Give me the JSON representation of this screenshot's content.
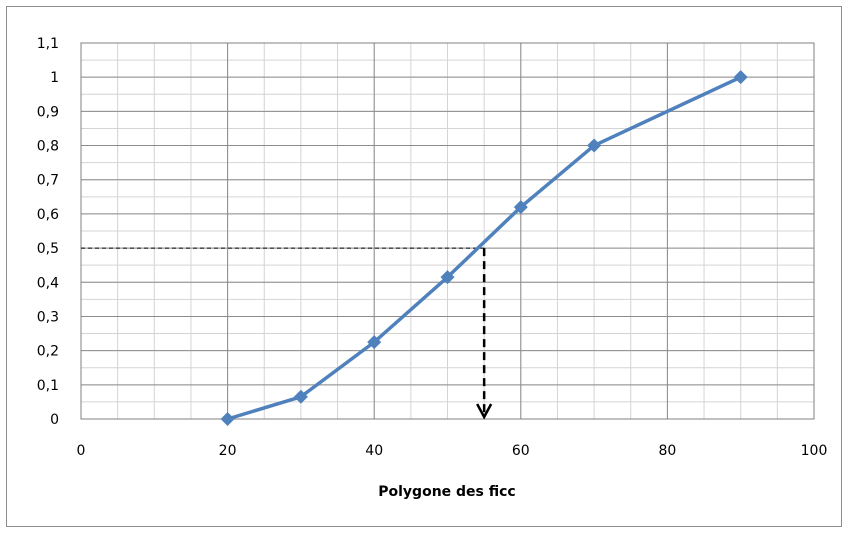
{
  "chart_data": {
    "type": "line",
    "title": "",
    "xlabel": "Polygone des ficc",
    "ylabel": "",
    "xlim": [
      0,
      100
    ],
    "ylim": [
      0,
      1.1
    ],
    "x_ticks": [
      "0",
      "20",
      "40",
      "60",
      "80",
      "100"
    ],
    "y_ticks": [
      "0",
      "0,1",
      "0,2",
      "0,3",
      "0,4",
      "0,5",
      "0,6",
      "0,7",
      "0,8",
      "0,9",
      "1",
      "1,1"
    ],
    "x_tick_values": [
      0,
      20,
      40,
      60,
      80,
      100
    ],
    "y_tick_values": [
      0,
      0.1,
      0.2,
      0.3,
      0.4,
      0.5,
      0.6,
      0.7,
      0.8,
      0.9,
      1.0,
      1.1
    ],
    "grid": true,
    "minor_grid": true,
    "legend": "none",
    "series": [
      {
        "x": [
          20,
          30,
          40,
          50,
          60,
          70,
          90
        ],
        "y": [
          0,
          0.065,
          0.225,
          0.415,
          0.62,
          0.8,
          1.0
        ],
        "color": "#4f81bd",
        "marker": "diamond"
      }
    ],
    "annotations": [
      {
        "type": "horizontal-dashed-line",
        "from_x": 0,
        "to_x": 55,
        "y": 0.5,
        "color": "#000000"
      },
      {
        "type": "vertical-dashed-arrow",
        "x": 55,
        "from_y": 0.5,
        "to_y": 0,
        "color": "#000000"
      }
    ]
  }
}
